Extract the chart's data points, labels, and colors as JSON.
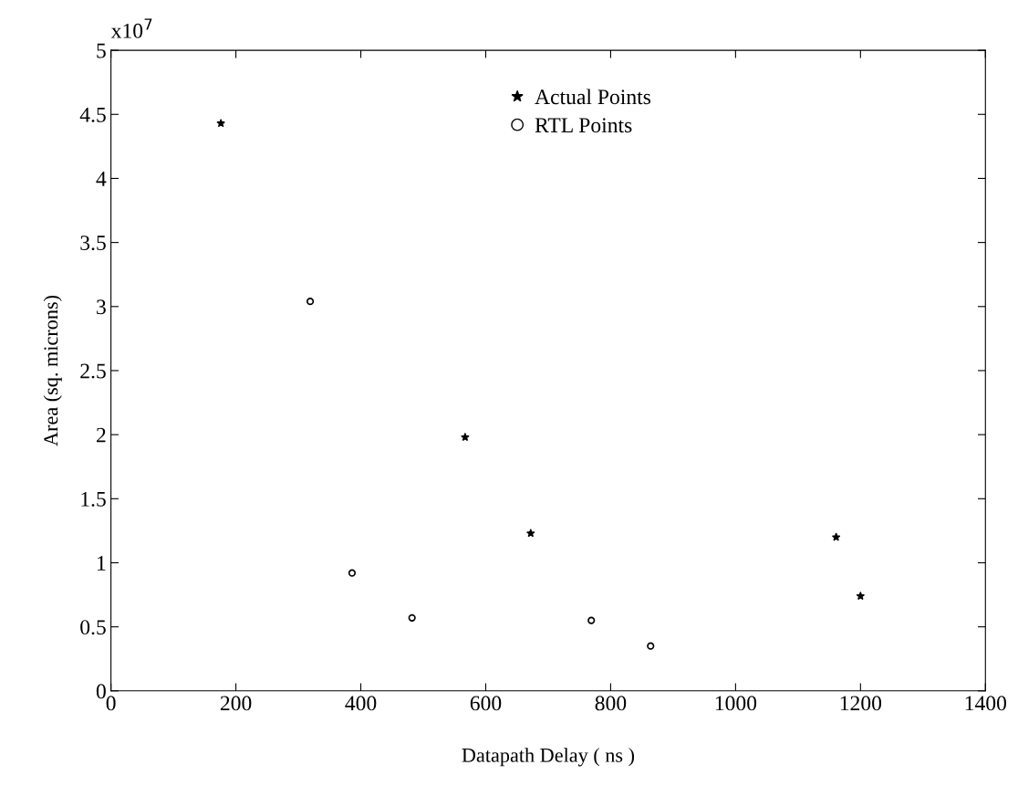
{
  "chart_data": {
    "type": "scatter",
    "xlabel": "Datapath Delay ( ns )",
    "ylabel": "Area (sq. microns)",
    "annotations": [
      "x10$^{7}$"
    ],
    "series": [
      {
        "name": "Actual Points",
        "color": "#000000",
        "marker": "star",
        "x": [
          176,
          567,
          672,
          1161,
          1200
        ],
        "values": [
          4.43,
          1.98,
          1.23,
          1.2,
          0.74
        ]
      },
      {
        "name": "RTL Points",
        "color": "#000000",
        "marker": "circle",
        "x": [
          319,
          386,
          482,
          769,
          864
        ],
        "values": [
          3.04,
          0.92,
          0.57,
          0.55,
          0.35
        ]
      }
    ],
    "xlim": [
      0,
      1400
    ],
    "xticks": [
      0,
      200,
      400,
      600,
      800,
      1000,
      1200,
      1400
    ],
    "ylim": [
      0,
      5
    ],
    "yticks": [
      0,
      0.5,
      1,
      1.5,
      2,
      2.5,
      3,
      3.5,
      4,
      4.5,
      5
    ],
    "grid": false,
    "legend": "top right"
  }
}
